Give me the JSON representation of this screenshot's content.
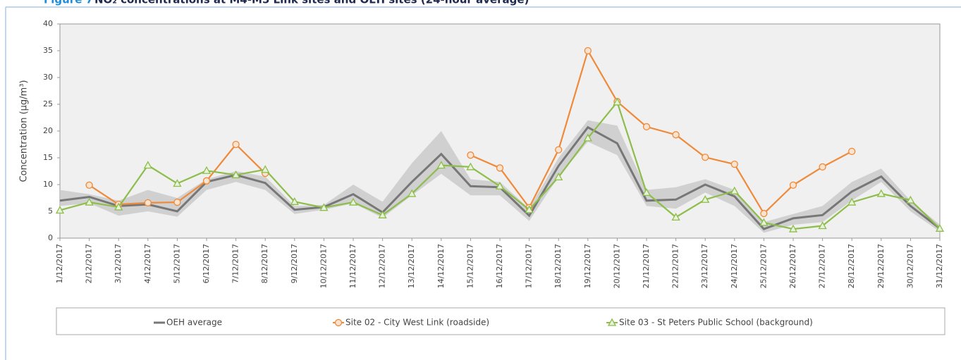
{
  "chart_data": {
    "type": "line",
    "title_prefix": "Figure 7",
    "title": "NO₂ concentrations at M4-M5 Link sites and OEH sites (24-hour average)",
    "y_label": "Concentration (µg/m³)",
    "categories": [
      "1/12/2017",
      "2/12/2017",
      "3/12/2017",
      "4/12/2017",
      "5/12/2017",
      "6/12/2017",
      "7/12/2017",
      "8/12/2017",
      "9/12/2017",
      "10/12/2017",
      "11/12/2017",
      "12/12/2017",
      "13/12/2017",
      "14/12/2017",
      "15/12/2017",
      "16/12/2017",
      "17/12/2017",
      "18/12/2017",
      "19/12/2017",
      "20/12/2017",
      "21/12/2017",
      "22/12/2017",
      "23/12/2017",
      "24/12/2017",
      "25/12/2017",
      "26/12/2017",
      "27/12/2017",
      "28/12/2017",
      "29/12/2017",
      "30/12/2017",
      "31/12/2017"
    ],
    "ylim": [
      0,
      40
    ],
    "yticks": [
      0,
      5,
      10,
      15,
      20,
      25,
      30,
      35,
      40
    ],
    "grid": false,
    "band": {
      "color": "#c8c8c8",
      "lower": [
        6,
        6.5,
        4.2,
        5,
        4,
        9,
        10.5,
        9,
        4.5,
        5.3,
        6.5,
        3.8,
        8,
        12,
        8,
        8,
        3.2,
        11.5,
        18,
        15.5,
        6,
        5.5,
        8.5,
        6,
        1,
        2.5,
        3,
        7,
        10.5,
        5,
        1.2
      ],
      "upper": [
        9,
        8.2,
        7,
        9,
        7.5,
        11,
        12.5,
        11.5,
        6,
        6.2,
        10,
        6.8,
        14,
        20,
        11,
        10.5,
        5.5,
        15,
        22,
        21,
        9,
        9.5,
        11,
        9,
        3,
        4.5,
        6,
        10.5,
        13,
        7,
        2.5
      ]
    },
    "series": [
      {
        "name": "OEH average",
        "color": "#777777",
        "marker": "none",
        "values": [
          7,
          7.7,
          6,
          6.3,
          5,
          10.5,
          11.8,
          10.3,
          5.3,
          5.8,
          8.2,
          4.8,
          10.5,
          15.7,
          9.7,
          9.5,
          4.2,
          13.5,
          20.7,
          17.7,
          7,
          7.2,
          10,
          7.8,
          1.7,
          3.7,
          4.3,
          8.7,
          11.5,
          6,
          1.8
        ]
      },
      {
        "name": "Site 02 - City West Link (roadside)",
        "color": "#ee8a3a",
        "marker": "circle",
        "values": [
          null,
          9.9,
          6.3,
          6.6,
          6.7,
          10.7,
          17.5,
          12.1,
          null,
          null,
          null,
          null,
          null,
          null,
          15.5,
          13.1,
          5.7,
          16.5,
          35,
          25.5,
          20.8,
          19.3,
          15.1,
          13.8,
          4.6,
          9.9,
          13.3,
          16.2,
          null,
          null,
          null
        ]
      },
      {
        "name": "Site 03 - St Peters Public School (background)",
        "color": "#8dbd4a",
        "marker": "triangle",
        "values": [
          5.2,
          6.7,
          5.8,
          13.6,
          10.2,
          12.6,
          11.8,
          12.8,
          6.8,
          5.7,
          6.7,
          4.3,
          8.3,
          13.6,
          13.3,
          9.7,
          5.3,
          11.4,
          18.7,
          25.4,
          8.5,
          3.9,
          7.2,
          8.8,
          2.9,
          1.7,
          2.3,
          6.7,
          8.3,
          7.1,
          1.8
        ]
      }
    ]
  }
}
